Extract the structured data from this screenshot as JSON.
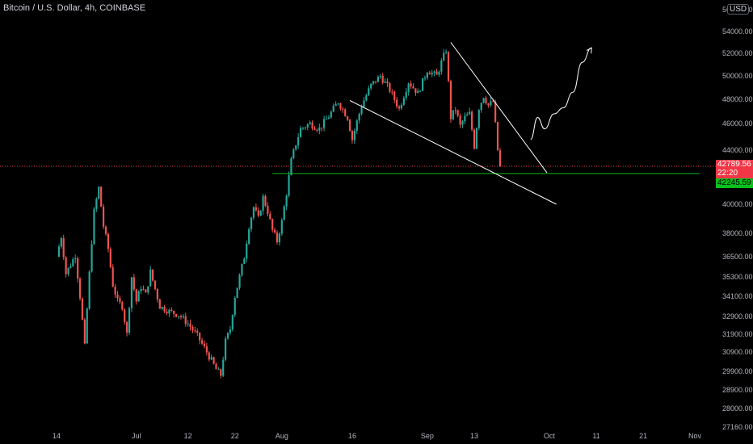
{
  "header": {
    "title": "Bitcoin / U.S. Dollar, 4h, COINBASE",
    "currency": "USD"
  },
  "tags": {
    "last_price": "42789.56",
    "countdown": "22:20",
    "support_price": "42245.59"
  },
  "colors": {
    "background": "#000000",
    "up": "#26a69a",
    "down": "#ef5350",
    "support_line": "#08c11a",
    "last_price_line": "#f23645",
    "trendline": "#ffffff"
  },
  "chart_data": {
    "type": "candlestick",
    "symbol": "Bitcoin / U.S. Dollar",
    "interval": "4h",
    "exchange": "COINBASE",
    "y_ticks": [
      56000,
      54000,
      52000,
      50000,
      48000,
      46000,
      44000,
      42000,
      40000,
      38000,
      36500,
      35300,
      34100,
      32900,
      31900,
      30900,
      29900,
      28900,
      28000,
      27160
    ],
    "y_tick_labels": [
      "56000.00",
      "54000.00",
      "52000.00",
      "50000.00",
      "48000.00",
      "46000.00",
      "44000.00",
      "42000.00",
      "40000.00",
      "38000.00",
      "36500.00",
      "35300.00",
      "34100.00",
      "32900.00",
      "31900.00",
      "30900.00",
      "29900.00",
      "28900.00",
      "28000.00",
      "27160.00"
    ],
    "x_ticks": [
      "14",
      "Jul",
      "12",
      "22",
      "Aug",
      "16",
      "Sep",
      "13",
      "Oct",
      "11",
      "21",
      "Nov"
    ],
    "x_tick_days": [
      0,
      17,
      28,
      38,
      48,
      63,
      79,
      89,
      105,
      115,
      125,
      136
    ],
    "last_price": 42789.56,
    "support_price": 42245.59,
    "price_path": [
      [
        0,
        36500
      ],
      [
        1,
        37800
      ],
      [
        2,
        35500
      ],
      [
        4,
        36600
      ],
      [
        5,
        34100
      ],
      [
        6,
        31200
      ],
      [
        7,
        35500
      ],
      [
        8,
        39500
      ],
      [
        9,
        41200
      ],
      [
        10,
        38500
      ],
      [
        11,
        37000
      ],
      [
        12,
        34800
      ],
      [
        13,
        33800
      ],
      [
        14,
        33500
      ],
      [
        15,
        31900
      ],
      [
        16,
        35300
      ],
      [
        17,
        33800
      ],
      [
        18,
        34700
      ],
      [
        19,
        34200
      ],
      [
        20,
        35600
      ],
      [
        22,
        33500
      ],
      [
        24,
        33200
      ],
      [
        26,
        33000
      ],
      [
        28,
        32500
      ],
      [
        30,
        31800
      ],
      [
        32,
        30900
      ],
      [
        34,
        30000
      ],
      [
        35,
        29700
      ],
      [
        36,
        31500
      ],
      [
        37,
        32200
      ],
      [
        38,
        34100
      ],
      [
        39,
        35300
      ],
      [
        40,
        36500
      ],
      [
        41,
        38500
      ],
      [
        42,
        39800
      ],
      [
        43,
        39000
      ],
      [
        44,
        40500
      ],
      [
        45,
        39500
      ],
      [
        46,
        38200
      ],
      [
        47,
        37500
      ],
      [
        48,
        38800
      ],
      [
        49,
        40800
      ],
      [
        50,
        43200
      ],
      [
        51,
        44500
      ],
      [
        52,
        45600
      ],
      [
        54,
        46000
      ],
      [
        56,
        45600
      ],
      [
        58,
        46600
      ],
      [
        60,
        47800
      ],
      [
        62,
        46500
      ],
      [
        63,
        44800
      ],
      [
        65,
        47500
      ],
      [
        67,
        49200
      ],
      [
        69,
        50000
      ],
      [
        71,
        48800
      ],
      [
        73,
        47200
      ],
      [
        75,
        49500
      ],
      [
        77,
        48500
      ],
      [
        79,
        50500
      ],
      [
        81,
        50000
      ],
      [
        82,
        51200
      ],
      [
        83,
        52300
      ],
      [
        84,
        46500
      ],
      [
        85,
        47200
      ],
      [
        86,
        45800
      ],
      [
        87,
        46500
      ],
      [
        88,
        46800
      ],
      [
        89,
        44300
      ],
      [
        90,
        47300
      ],
      [
        91,
        48300
      ],
      [
        92,
        47500
      ],
      [
        93,
        47800
      ],
      [
        94,
        44000
      ],
      [
        94.5,
        42789.56
      ]
    ],
    "annotations": {
      "descending_trendline_upper": [
        [
          84,
          53000
        ],
        [
          104.5,
          42300
        ]
      ],
      "descending_trendline_lower": [
        [
          62.5,
          47900
        ],
        [
          106.5,
          40000
        ]
      ],
      "support_line": [
        [
          46,
          42245.59
        ],
        [
          137,
          42245.59
        ]
      ],
      "projected_path": [
        [
          101,
          44800
        ],
        [
          102.5,
          46500
        ],
        [
          104,
          45600
        ],
        [
          106,
          46800
        ],
        [
          108,
          47300
        ],
        [
          110,
          48600
        ],
        [
          112,
          51200
        ],
        [
          114,
          52500
        ]
      ]
    },
    "grid": false,
    "legend": "none"
  }
}
